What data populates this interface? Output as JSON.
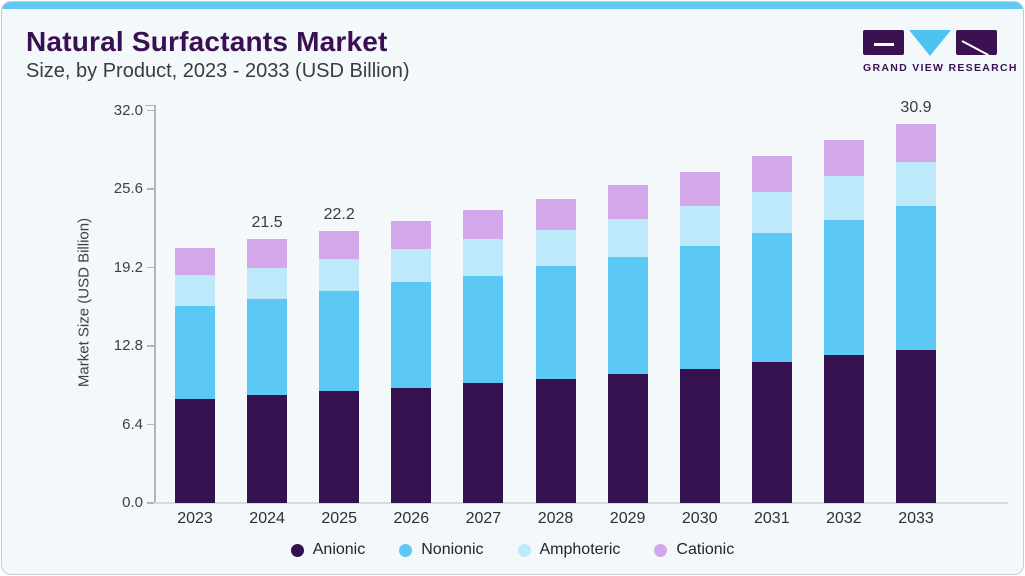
{
  "header": {
    "title": "Natural Surfactants Market",
    "subtitle": "Size, by Product, 2023 - 2033 (USD Billion)",
    "logo_text": "GRAND VIEW RESEARCH"
  },
  "colors": {
    "accent_bar": "#62C8F2",
    "panel_background": "#F3F8FB",
    "title_text": "#3A1053",
    "logo_purple": "#3B1152",
    "logo_blue": "#4FC3EF"
  },
  "chart_data": {
    "type": "bar",
    "stacked": true,
    "title": "Natural Surfactants Market Size, by Product, 2023 - 2033 (USD Billion)",
    "categories": [
      "2023",
      "2024",
      "2025",
      "2026",
      "2027",
      "2028",
      "2029",
      "2030",
      "2031",
      "2032",
      "2033"
    ],
    "series": [
      {
        "name": "Anionic",
        "color": "#36114F",
        "values": [
          8.5,
          8.8,
          9.1,
          9.4,
          9.8,
          10.1,
          10.5,
          10.9,
          11.5,
          12.1,
          12.5
        ]
      },
      {
        "name": "Nonionic",
        "color": "#5CC9F5",
        "values": [
          7.6,
          7.8,
          8.2,
          8.6,
          8.7,
          9.2,
          9.6,
          10.1,
          10.5,
          11.0,
          11.7
        ]
      },
      {
        "name": "Amphoteric",
        "color": "#BDE9FA",
        "values": [
          2.5,
          2.6,
          2.6,
          2.7,
          3.0,
          3.0,
          3.1,
          3.2,
          3.4,
          3.6,
          3.6
        ]
      },
      {
        "name": "Cationic",
        "color": "#D3A8EB",
        "values": [
          2.2,
          2.3,
          2.3,
          2.3,
          2.4,
          2.5,
          2.7,
          2.8,
          2.9,
          2.9,
          3.1
        ]
      }
    ],
    "totals": [
      20.8,
      21.5,
      22.2,
      23.0,
      23.9,
      24.8,
      25.9,
      27.0,
      28.3,
      29.6,
      30.9
    ],
    "annotations": [
      {
        "category": "2024",
        "text": "21.5"
      },
      {
        "category": "2025",
        "text": "22.2"
      },
      {
        "category": "2033",
        "text": "30.9"
      }
    ],
    "xlabel": "",
    "ylabel": "Market Size (USD Billion)",
    "ylim": [
      0,
      32
    ],
    "yticks": [
      "0.0",
      "6.4",
      "12.8",
      "19.2",
      "25.6",
      "32.0"
    ],
    "grid": false,
    "legend_position": "bottom"
  }
}
